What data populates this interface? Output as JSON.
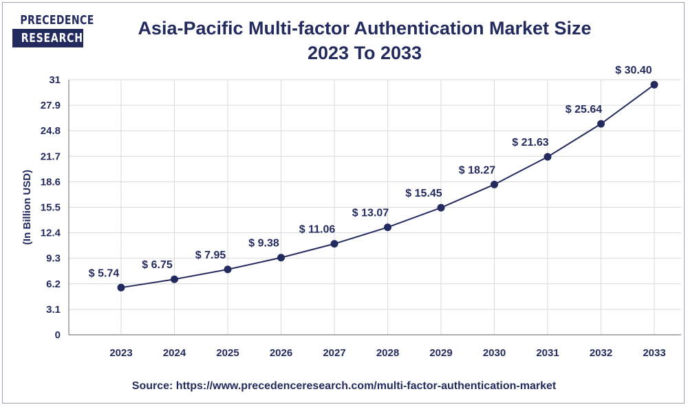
{
  "header": {
    "logo_top": "PRECEDENCE",
    "logo_bottom": "RESEARCH",
    "title_line1": "Asia-Pacific Multi-factor Authentication Market Size",
    "title_line2": "2023 To 2033"
  },
  "footer": {
    "source": "Source: https://www.precedenceresearch.com/multi-factor-authentication-market"
  },
  "colors": {
    "navy": "#232b5e",
    "grid": "#d9d9d9",
    "axis": "#7f7f7f"
  },
  "chart_data": {
    "type": "line",
    "title": "Asia-Pacific Multi-factor Authentication Market Size 2023 To 2033",
    "xlabel": "",
    "ylabel": "(In Billion USD)",
    "categories": [
      "2023",
      "2024",
      "2025",
      "2026",
      "2027",
      "2028",
      "2029",
      "2030",
      "2031",
      "2032",
      "2033"
    ],
    "values": [
      5.74,
      6.75,
      7.95,
      9.38,
      11.06,
      13.07,
      15.45,
      18.27,
      21.63,
      25.64,
      30.4
    ],
    "data_labels": [
      "$ 5.74",
      "$ 6.75",
      "$ 7.95",
      "$ 9.38",
      "$ 11.06",
      "$ 13.07",
      "$ 15.45",
      "$ 18.27",
      "$ 21.63",
      "$ 25.64",
      "$ 30.40"
    ],
    "yticks": [
      "0",
      "3.1",
      "6.2",
      "9.3",
      "12.4",
      "15.5",
      "18.6",
      "21.7",
      "24.8",
      "27.9",
      "31"
    ],
    "ylim": [
      0,
      31
    ],
    "grid": true,
    "legend": "none"
  }
}
